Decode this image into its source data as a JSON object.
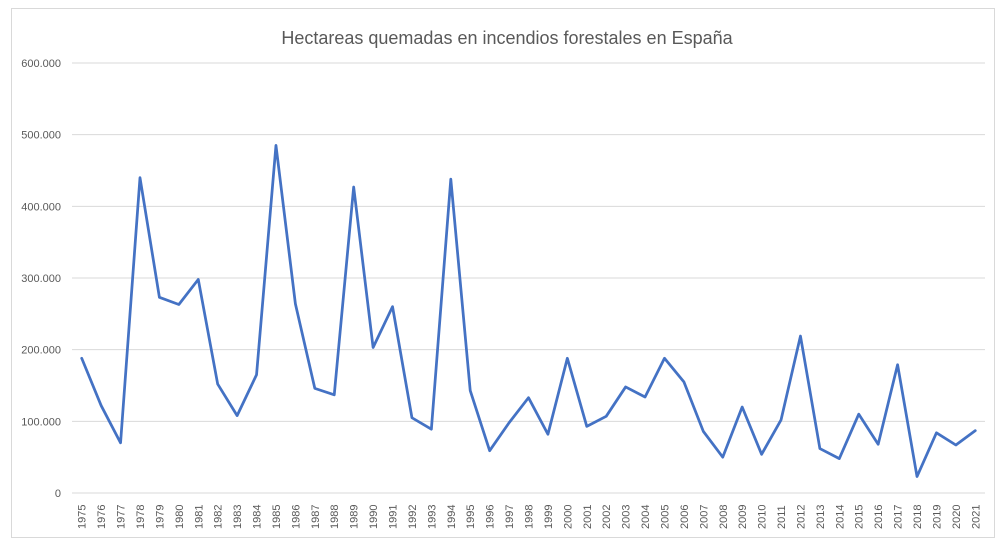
{
  "chart_data": {
    "type": "line",
    "title": "Hectareas quemadas en incendios forestales en España",
    "xlabel": "",
    "ylabel": "",
    "ylim": [
      0,
      600000
    ],
    "y_ticks": [
      0,
      100000,
      200000,
      300000,
      400000,
      500000,
      600000
    ],
    "y_tick_labels": [
      "0",
      "100.000",
      "200.000",
      "300.000",
      "400.000",
      "500.000",
      "600.000"
    ],
    "grid": true,
    "legend": "none",
    "line_color": "#4472c4",
    "categories": [
      "1975",
      "1976",
      "1977",
      "1978",
      "1979",
      "1980",
      "1981",
      "1982",
      "1983",
      "1984",
      "1985",
      "1986",
      "1987",
      "1988",
      "1989",
      "1990",
      "1991",
      "1992",
      "1993",
      "1994",
      "1995",
      "1996",
      "1997",
      "1998",
      "1999",
      "2000",
      "2001",
      "2002",
      "2003",
      "2004",
      "2005",
      "2006",
      "2007",
      "2008",
      "2009",
      "2010",
      "2011",
      "2012",
      "2013",
      "2014",
      "2015",
      "2016",
      "2017",
      "2018",
      "2019",
      "2020",
      "2021"
    ],
    "series": [
      {
        "values": [
          188000,
          122000,
          70000,
          440000,
          273000,
          263000,
          298000,
          152000,
          108000,
          165000,
          485000,
          264000,
          146000,
          137000,
          427000,
          203000,
          260000,
          105000,
          89000,
          438000,
          143000,
          59000,
          98000,
          133000,
          82000,
          188000,
          93000,
          107000,
          148000,
          134000,
          188000,
          155000,
          86000,
          50000,
          120000,
          54000,
          102000,
          219000,
          62000,
          48000,
          110000,
          68000,
          179000,
          23000,
          84000,
          67000,
          87000
        ]
      }
    ]
  }
}
